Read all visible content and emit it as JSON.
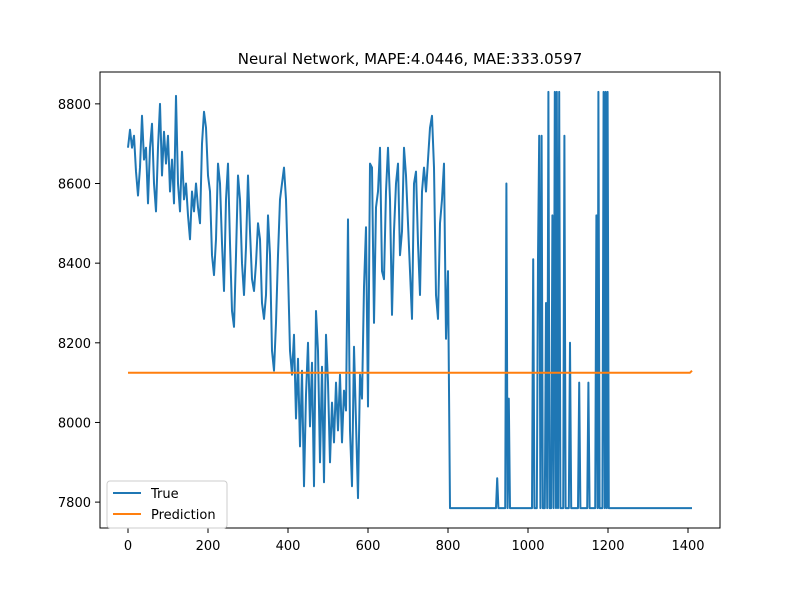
{
  "chart_data": {
    "type": "line",
    "title": "Neural Network, MAPE:4.0446, MAE:333.0597",
    "xlabel": "",
    "ylabel": "",
    "xlim": [
      -70,
      1480
    ],
    "ylim": [
      7735,
      8880
    ],
    "xticks": [
      0,
      200,
      400,
      600,
      800,
      1000,
      1200,
      1400
    ],
    "yticks": [
      7800,
      8000,
      8200,
      8400,
      8600,
      8800
    ],
    "grid": false,
    "legend_position": "lower-left",
    "series": [
      {
        "name": "True",
        "color": "#1f77b4",
        "points": [
          [
            0,
            8690
          ],
          [
            5,
            8735
          ],
          [
            10,
            8690
          ],
          [
            15,
            8720
          ],
          [
            20,
            8630
          ],
          [
            25,
            8570
          ],
          [
            30,
            8640
          ],
          [
            35,
            8770
          ],
          [
            40,
            8660
          ],
          [
            45,
            8690
          ],
          [
            50,
            8550
          ],
          [
            55,
            8690
          ],
          [
            60,
            8750
          ],
          [
            65,
            8600
          ],
          [
            70,
            8530
          ],
          [
            75,
            8690
          ],
          [
            80,
            8800
          ],
          [
            85,
            8620
          ],
          [
            90,
            8730
          ],
          [
            95,
            8650
          ],
          [
            100,
            8720
          ],
          [
            105,
            8580
          ],
          [
            110,
            8660
          ],
          [
            115,
            8550
          ],
          [
            120,
            8820
          ],
          [
            125,
            8600
          ],
          [
            130,
            8530
          ],
          [
            135,
            8680
          ],
          [
            140,
            8560
          ],
          [
            145,
            8600
          ],
          [
            150,
            8520
          ],
          [
            155,
            8460
          ],
          [
            160,
            8580
          ],
          [
            165,
            8530
          ],
          [
            170,
            8600
          ],
          [
            175,
            8540
          ],
          [
            180,
            8500
          ],
          [
            185,
            8700
          ],
          [
            190,
            8780
          ],
          [
            195,
            8740
          ],
          [
            200,
            8620
          ],
          [
            205,
            8580
          ],
          [
            210,
            8420
          ],
          [
            215,
            8370
          ],
          [
            220,
            8460
          ],
          [
            225,
            8650
          ],
          [
            230,
            8600
          ],
          [
            235,
            8450
          ],
          [
            240,
            8330
          ],
          [
            245,
            8560
          ],
          [
            250,
            8650
          ],
          [
            255,
            8450
          ],
          [
            260,
            8280
          ],
          [
            265,
            8240
          ],
          [
            270,
            8420
          ],
          [
            275,
            8620
          ],
          [
            280,
            8560
          ],
          [
            285,
            8400
          ],
          [
            290,
            8320
          ],
          [
            295,
            8440
          ],
          [
            300,
            8620
          ],
          [
            305,
            8480
          ],
          [
            310,
            8360
          ],
          [
            315,
            8330
          ],
          [
            320,
            8400
          ],
          [
            325,
            8500
          ],
          [
            330,
            8460
          ],
          [
            335,
            8300
          ],
          [
            340,
            8260
          ],
          [
            345,
            8320
          ],
          [
            350,
            8520
          ],
          [
            355,
            8420
          ],
          [
            360,
            8180
          ],
          [
            365,
            8130
          ],
          [
            370,
            8250
          ],
          [
            375,
            8420
          ],
          [
            380,
            8560
          ],
          [
            385,
            8600
          ],
          [
            390,
            8640
          ],
          [
            395,
            8560
          ],
          [
            400,
            8380
          ],
          [
            405,
            8180
          ],
          [
            410,
            8120
          ],
          [
            415,
            8220
          ],
          [
            420,
            8010
          ],
          [
            425,
            8160
          ],
          [
            430,
            7940
          ],
          [
            435,
            8130
          ],
          [
            440,
            7840
          ],
          [
            445,
            8070
          ],
          [
            450,
            8200
          ],
          [
            455,
            7990
          ],
          [
            460,
            8150
          ],
          [
            465,
            7840
          ],
          [
            470,
            8280
          ],
          [
            475,
            8180
          ],
          [
            480,
            7900
          ],
          [
            485,
            8140
          ],
          [
            490,
            7850
          ],
          [
            495,
            8220
          ],
          [
            500,
            8100
          ],
          [
            505,
            7900
          ],
          [
            510,
            8050
          ],
          [
            515,
            7950
          ],
          [
            520,
            8100
          ],
          [
            525,
            7980
          ],
          [
            530,
            8120
          ],
          [
            535,
            7950
          ],
          [
            540,
            8080
          ],
          [
            545,
            8030
          ],
          [
            550,
            8510
          ],
          [
            555,
            7980
          ],
          [
            560,
            7840
          ],
          [
            565,
            8190
          ],
          [
            570,
            8000
          ],
          [
            575,
            7810
          ],
          [
            580,
            8120
          ],
          [
            585,
            8060
          ],
          [
            590,
            8340
          ],
          [
            595,
            8490
          ],
          [
            600,
            8040
          ],
          [
            605,
            8650
          ],
          [
            610,
            8640
          ],
          [
            615,
            8250
          ],
          [
            620,
            8540
          ],
          [
            625,
            8580
          ],
          [
            630,
            8690
          ],
          [
            635,
            8380
          ],
          [
            640,
            8360
          ],
          [
            645,
            8580
          ],
          [
            650,
            8690
          ],
          [
            655,
            8560
          ],
          [
            660,
            8270
          ],
          [
            665,
            8480
          ],
          [
            670,
            8600
          ],
          [
            675,
            8650
          ],
          [
            680,
            8420
          ],
          [
            685,
            8480
          ],
          [
            690,
            8690
          ],
          [
            695,
            8620
          ],
          [
            700,
            8500
          ],
          [
            705,
            8380
          ],
          [
            710,
            8260
          ],
          [
            715,
            8600
          ],
          [
            720,
            8630
          ],
          [
            725,
            8450
          ],
          [
            730,
            8320
          ],
          [
            735,
            8580
          ],
          [
            740,
            8640
          ],
          [
            745,
            8580
          ],
          [
            750,
            8660
          ],
          [
            755,
            8740
          ],
          [
            760,
            8770
          ],
          [
            765,
            8640
          ],
          [
            770,
            8320
          ],
          [
            775,
            8260
          ],
          [
            780,
            8500
          ],
          [
            785,
            8560
          ],
          [
            790,
            8650
          ],
          [
            795,
            8210
          ],
          [
            800,
            8380
          ],
          [
            805,
            7785
          ],
          [
            920,
            7785
          ],
          [
            923,
            7860
          ],
          [
            926,
            7785
          ],
          [
            943,
            7785
          ],
          [
            946,
            8600
          ],
          [
            949,
            7785
          ],
          [
            952,
            8060
          ],
          [
            955,
            7785
          ],
          [
            1010,
            7785
          ],
          [
            1013,
            8410
          ],
          [
            1016,
            7785
          ],
          [
            1022,
            7785
          ],
          [
            1025,
            8410
          ],
          [
            1028,
            8720
          ],
          [
            1031,
            7785
          ],
          [
            1034,
            8720
          ],
          [
            1037,
            7785
          ],
          [
            1042,
            7785
          ],
          [
            1045,
            8300
          ],
          [
            1048,
            7785
          ],
          [
            1051,
            8830
          ],
          [
            1054,
            7785
          ],
          [
            1058,
            7785
          ],
          [
            1061,
            8520
          ],
          [
            1064,
            7785
          ],
          [
            1067,
            8830
          ],
          [
            1070,
            7785
          ],
          [
            1072,
            8830
          ],
          [
            1075,
            7785
          ],
          [
            1078,
            8830
          ],
          [
            1081,
            7785
          ],
          [
            1088,
            7785
          ],
          [
            1091,
            8720
          ],
          [
            1094,
            7785
          ],
          [
            1102,
            7785
          ],
          [
            1105,
            8200
          ],
          [
            1108,
            7785
          ],
          [
            1125,
            7785
          ],
          [
            1128,
            8100
          ],
          [
            1131,
            7785
          ],
          [
            1148,
            7785
          ],
          [
            1151,
            8100
          ],
          [
            1154,
            7785
          ],
          [
            1168,
            7785
          ],
          [
            1171,
            8520
          ],
          [
            1174,
            7785
          ],
          [
            1176,
            8830
          ],
          [
            1179,
            7785
          ],
          [
            1186,
            7785
          ],
          [
            1189,
            8830
          ],
          [
            1192,
            7785
          ],
          [
            1194,
            8830
          ],
          [
            1197,
            7785
          ],
          [
            1199,
            8830
          ],
          [
            1202,
            7785
          ],
          [
            1410,
            7785
          ]
        ]
      },
      {
        "name": "Prediction",
        "color": "#ff7f0e",
        "points": [
          [
            0,
            8125
          ],
          [
            1405,
            8125
          ],
          [
            1410,
            8130
          ]
        ]
      }
    ]
  }
}
